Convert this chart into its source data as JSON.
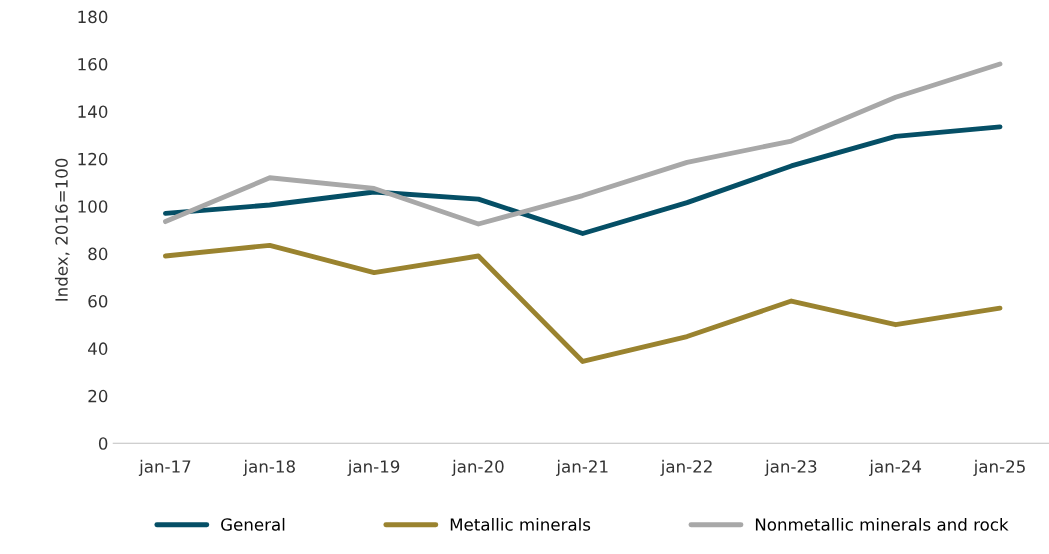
{
  "chart_data": {
    "type": "line",
    "ylabel": "Index, 2016=100",
    "categories": [
      "jan-17",
      "jan-18",
      "jan-19",
      "jan-20",
      "jan-21",
      "jan-22",
      "jan-23",
      "jan-24",
      "jan-25"
    ],
    "series": [
      {
        "name": "General",
        "color": "#054f66",
        "values": [
          97,
          100.5,
          106,
          103,
          88.5,
          101.5,
          117,
          129.5,
          133.5
        ]
      },
      {
        "name": "Metallic minerals",
        "color": "#9a832f",
        "values": [
          79,
          83.5,
          72,
          79,
          34.5,
          45,
          60,
          50,
          57
        ]
      },
      {
        "name": "Nonmetallic minerals and rock",
        "color": "#a8a8a8",
        "values": [
          93.5,
          112,
          107.5,
          92.5,
          104.5,
          118.5,
          127.5,
          146,
          160
        ]
      }
    ],
    "ylim": [
      0,
      180
    ],
    "yticks": [
      0,
      20,
      40,
      60,
      80,
      100,
      120,
      140,
      160,
      180
    ],
    "grid": false,
    "legend": "bottom",
    "marker": "none",
    "line_style": "solid"
  }
}
